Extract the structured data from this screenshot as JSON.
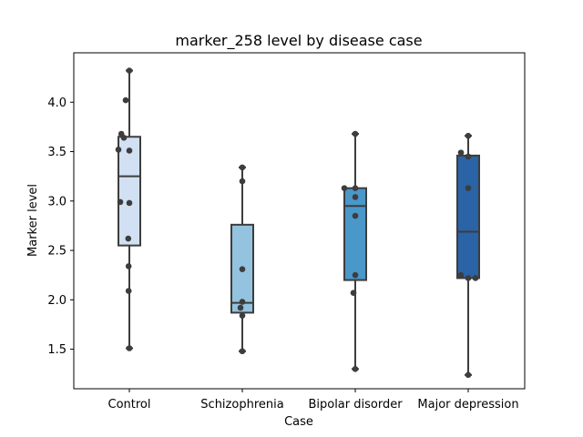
{
  "chart_data": {
    "type": "box",
    "title": "marker_258 level by disease case",
    "xlabel": "Case",
    "ylabel": "Marker level",
    "categories": [
      "Control",
      "Schizophrenia",
      "Bipolar disorder",
      "Major depression"
    ],
    "ylim": [
      1.1,
      4.5
    ],
    "yticks": [
      1.5,
      2.0,
      2.5,
      3.0,
      3.5,
      4.0
    ],
    "ytick_labels": [
      "1.5",
      "2.0",
      "2.5",
      "3.0",
      "3.5",
      "4.0"
    ],
    "grid": false,
    "box_colors": [
      "#d1e0f2",
      "#93c3df",
      "#4a97c9",
      "#2a63a6"
    ],
    "edge_color": "#3d3d3d",
    "point_color": "#3d3d3d",
    "boxes": [
      {
        "category": "Control",
        "whisker_low": 1.51,
        "q1": 2.55,
        "median": 3.25,
        "q3": 3.65,
        "whisker_high": 4.32
      },
      {
        "category": "Schizophrenia",
        "whisker_low": 1.48,
        "q1": 1.87,
        "median": 1.97,
        "q3": 2.76,
        "whisker_high": 3.34
      },
      {
        "category": "Bipolar disorder",
        "whisker_low": 1.3,
        "q1": 2.2,
        "median": 2.95,
        "q3": 3.13,
        "whisker_high": 3.68
      },
      {
        "category": "Major depression",
        "whisker_low": 1.24,
        "q1": 2.22,
        "median": 2.69,
        "q3": 3.46,
        "whisker_high": 3.66
      }
    ],
    "points": [
      {
        "category": "Control",
        "values": [
          4.32,
          4.02,
          3.68,
          3.64,
          3.52,
          3.51,
          2.99,
          2.98,
          2.62,
          2.34,
          2.09,
          1.51
        ],
        "offsets": [
          0.0,
          -0.1,
          -0.22,
          -0.15,
          -0.3,
          0.0,
          -0.25,
          0.0,
          -0.03,
          -0.02,
          -0.02,
          0.0
        ]
      },
      {
        "category": "Schizophrenia",
        "values": [
          3.34,
          3.2,
          2.31,
          1.98,
          1.92,
          1.84,
          1.48
        ],
        "offsets": [
          0.0,
          0.0,
          0.0,
          0.0,
          -0.05,
          0.0,
          0.0
        ]
      },
      {
        "category": "Bipolar disorder",
        "values": [
          3.68,
          3.13,
          3.13,
          3.04,
          2.85,
          2.25,
          2.07,
          1.3
        ],
        "offsets": [
          0.0,
          -0.3,
          0.0,
          0.0,
          0.0,
          0.0,
          -0.05,
          0.0
        ]
      },
      {
        "category": "Major depression",
        "values": [
          3.66,
          3.49,
          3.45,
          3.13,
          2.25,
          2.22,
          2.22,
          1.24
        ],
        "offsets": [
          0.0,
          -0.2,
          0.0,
          0.0,
          -0.2,
          0.0,
          0.2,
          0.0
        ]
      }
    ]
  }
}
